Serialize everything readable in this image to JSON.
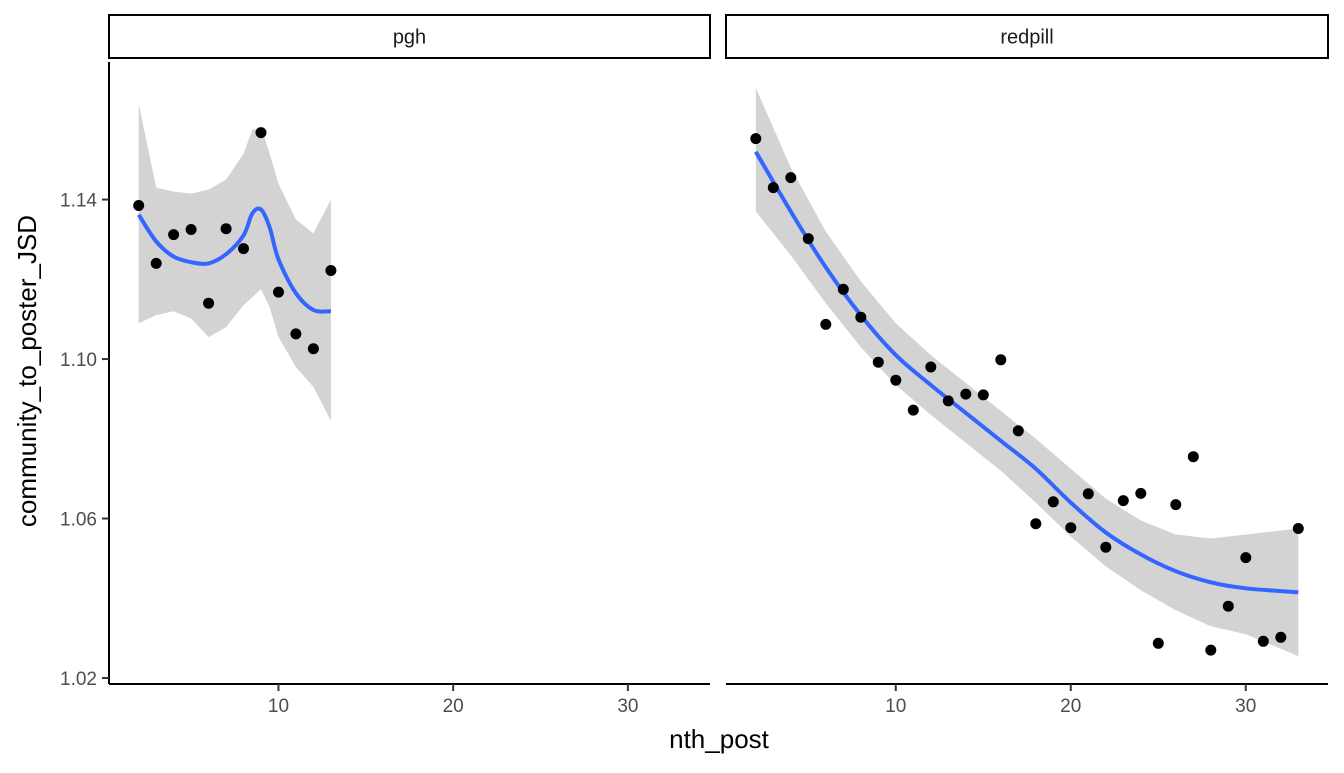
{
  "chart_data": {
    "type": "scatter",
    "layout": "facet_wrap",
    "xlabel": "nth_post",
    "ylabel": "community_to_poster_JSD",
    "xlim": [
      0.3,
      34.7
    ],
    "ylim": [
      1.0185,
      1.1745
    ],
    "x_ticks": [
      10,
      20,
      30
    ],
    "x_tick_labels": [
      "10",
      "20",
      "30"
    ],
    "y_ticks": [
      1.02,
      1.06,
      1.1,
      1.14
    ],
    "y_tick_labels": [
      "1.02",
      "1.06",
      "1.10",
      "1.14"
    ],
    "grid": false,
    "legend": "none",
    "colors": {
      "points": "#000000",
      "smooth_line": "#3366FF",
      "ribbon": "#d3d3d3",
      "strip_border": "#000000",
      "axis": "#000000",
      "tick_label": "#4d4d4d"
    },
    "panels": [
      {
        "strip_label": "pgh",
        "points": [
          {
            "x": 2,
            "y": 1.1385
          },
          {
            "x": 3,
            "y": 1.124
          },
          {
            "x": 4,
            "y": 1.1312
          },
          {
            "x": 5,
            "y": 1.1325
          },
          {
            "x": 6,
            "y": 1.114
          },
          {
            "x": 7,
            "y": 1.1327
          },
          {
            "x": 8,
            "y": 1.1277
          },
          {
            "x": 9,
            "y": 1.1568
          },
          {
            "x": 10,
            "y": 1.1168
          },
          {
            "x": 11,
            "y": 1.1063
          },
          {
            "x": 12,
            "y": 1.1026
          },
          {
            "x": 13,
            "y": 1.1222
          }
        ],
        "smooth": {
          "x": [
            2,
            3,
            4,
            5,
            6,
            7,
            8,
            8.5,
            9,
            9.5,
            10,
            11,
            12,
            13
          ],
          "fit": [
            1.1362,
            1.1295,
            1.1257,
            1.1243,
            1.124,
            1.1263,
            1.131,
            1.1365,
            1.1375,
            1.133,
            1.125,
            1.1165,
            1.1123,
            1.112
          ],
          "lower": [
            1.109,
            1.111,
            1.112,
            1.1102,
            1.1055,
            1.108,
            1.1135,
            1.1155,
            1.1175,
            1.113,
            1.1055,
            1.098,
            1.093,
            1.0845
          ],
          "upper": [
            1.164,
            1.143,
            1.142,
            1.1415,
            1.1425,
            1.145,
            1.1515,
            1.1575,
            1.158,
            1.1515,
            1.144,
            1.135,
            1.1315,
            1.14
          ]
        }
      },
      {
        "strip_label": "redpill",
        "points": [
          {
            "x": 2,
            "y": 1.1553
          },
          {
            "x": 3,
            "y": 1.143
          },
          {
            "x": 4,
            "y": 1.1455
          },
          {
            "x": 5,
            "y": 1.1302
          },
          {
            "x": 6,
            "y": 1.1087
          },
          {
            "x": 7,
            "y": 1.1175
          },
          {
            "x": 8,
            "y": 1.1105
          },
          {
            "x": 9,
            "y": 1.0992
          },
          {
            "x": 10,
            "y": 1.0947
          },
          {
            "x": 11,
            "y": 1.0872
          },
          {
            "x": 12,
            "y": 1.098
          },
          {
            "x": 13,
            "y": 1.0895
          },
          {
            "x": 14,
            "y": 1.0912
          },
          {
            "x": 15,
            "y": 1.091
          },
          {
            "x": 16,
            "y": 1.0998
          },
          {
            "x": 17,
            "y": 1.082
          },
          {
            "x": 18,
            "y": 1.0587
          },
          {
            "x": 19,
            "y": 1.0642
          },
          {
            "x": 20,
            "y": 1.0577
          },
          {
            "x": 21,
            "y": 1.0662
          },
          {
            "x": 22,
            "y": 1.0528
          },
          {
            "x": 23,
            "y": 1.0645
          },
          {
            "x": 24,
            "y": 1.0663
          },
          {
            "x": 25,
            "y": 1.0287
          },
          {
            "x": 26,
            "y": 1.0635
          },
          {
            "x": 27,
            "y": 1.0755
          },
          {
            "x": 28,
            "y": 1.027
          },
          {
            "x": 29,
            "y": 1.038
          },
          {
            "x": 30,
            "y": 1.0502
          },
          {
            "x": 31,
            "y": 1.0292
          },
          {
            "x": 32,
            "y": 1.0302
          },
          {
            "x": 33,
            "y": 1.0575
          }
        ],
        "smooth": {
          "x": [
            2,
            4,
            6,
            8,
            10,
            12,
            14,
            16,
            18,
            20,
            22,
            24,
            26,
            28,
            30,
            33
          ],
          "fit": [
            1.152,
            1.137,
            1.123,
            1.111,
            1.101,
            1.0935,
            1.0865,
            1.0795,
            1.0725,
            1.064,
            1.0565,
            1.051,
            1.0468,
            1.044,
            1.0425,
            1.0415
          ],
          "lower": [
            1.137,
            1.126,
            1.114,
            1.103,
            1.0935,
            1.086,
            1.079,
            1.072,
            1.064,
            1.0555,
            1.048,
            1.042,
            1.037,
            1.033,
            1.031,
            1.0255
          ],
          "upper": [
            1.168,
            1.148,
            1.132,
            1.1195,
            1.109,
            1.101,
            1.094,
            1.087,
            1.08,
            1.0725,
            1.065,
            1.0595,
            1.056,
            1.055,
            1.056,
            1.0575
          ]
        }
      }
    ]
  }
}
